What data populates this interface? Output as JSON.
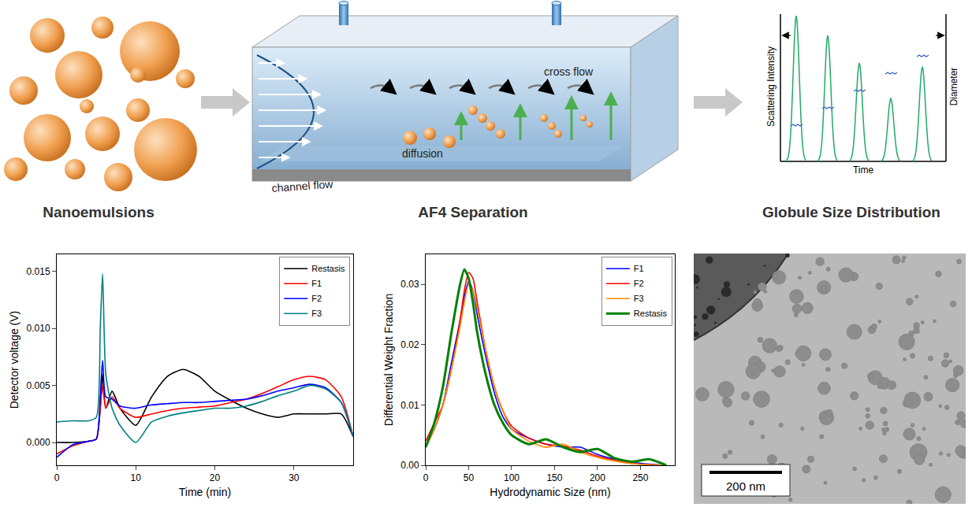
{
  "diagram": {
    "panels": [
      {
        "label": "Nanoemulsions"
      },
      {
        "label": "AF4 Separation",
        "annotations": [
          "channel flow",
          "cross flow",
          "diffusion"
        ]
      },
      {
        "label": "Globule Size Distribution",
        "axis_labels": {
          "left": "Scattering Intensity",
          "right": "Diameter",
          "bottom": "Time"
        }
      }
    ]
  },
  "image": {
    "scale_bar": "200 nm"
  },
  "chart_data": [
    {
      "type": "line",
      "x_label": "Time (min)",
      "y_label": "Detector voltage (V)",
      "x": [
        0,
        2,
        4,
        5,
        5.5,
        5.8,
        6.2,
        7,
        8,
        10,
        12,
        14,
        16,
        18,
        20,
        22,
        24,
        26,
        28,
        30,
        32,
        34,
        36,
        37.5
      ],
      "series": [
        {
          "name": "Restasis",
          "color": "#000000",
          "values": [
            0,
            0,
            0.0001,
            0.0003,
            0.003,
            0.006,
            0.003,
            0.0045,
            0.003,
            0.0015,
            0.004,
            0.0058,
            0.0064,
            0.0058,
            0.0045,
            0.0037,
            0.003,
            0.0025,
            0.0022,
            0.0025,
            0.0025,
            0.0025,
            0.0025,
            0.0005
          ]
        },
        {
          "name": "F1",
          "color": "#ff0000",
          "values": [
            -0.001,
            -0.0003,
            0.0001,
            0.0003,
            0.003,
            0.005,
            0.003,
            0.004,
            0.003,
            0.0022,
            0.0025,
            0.0028,
            0.003,
            0.0031,
            0.0032,
            0.0035,
            0.0038,
            0.0043,
            0.0049,
            0.0055,
            0.0058,
            0.0055,
            0.004,
            0.0005
          ]
        },
        {
          "name": "F2",
          "color": "#0000ff",
          "values": [
            -0.0013,
            -0.0002,
            0.0001,
            0.0003,
            0.004,
            0.0072,
            0.004,
            0.0038,
            0.0032,
            0.003,
            0.0033,
            0.0034,
            0.0035,
            0.0035,
            0.0036,
            0.0037,
            0.0038,
            0.0041,
            0.0045,
            0.0048,
            0.0051,
            0.0048,
            0.0035,
            0.0005
          ]
        },
        {
          "name": "F3",
          "color": "#008080",
          "values": [
            0.0018,
            0.0019,
            0.0019,
            0.0022,
            0.01,
            0.0148,
            0.006,
            0.003,
            0.0015,
            0,
            0.0018,
            0.0023,
            0.0026,
            0.0028,
            0.003,
            0.003,
            0.0032,
            0.0036,
            0.0041,
            0.0045,
            0.005,
            0.0047,
            0.0035,
            0.0005
          ]
        }
      ],
      "xlim": [
        0,
        37.5
      ],
      "xticks": [
        0,
        10,
        20,
        30
      ],
      "ylim": [
        -0.002,
        0.0165
      ],
      "yticks": [
        {
          "value": 0,
          "label": "0.000"
        },
        {
          "value": 0.005,
          "label": "0.005"
        },
        {
          "value": 0.01,
          "label": "0.010"
        },
        {
          "value": 0.015,
          "label": "0.015"
        }
      ],
      "legend": "top-right"
    },
    {
      "type": "line",
      "x_label": "Hydrodynamic Size (nm)",
      "y_label": "Differential Weight Fraction",
      "x": [
        0,
        10,
        20,
        30,
        40,
        45,
        50,
        55,
        60,
        70,
        80,
        90,
        100,
        120,
        140,
        160,
        180,
        200,
        220,
        240,
        260,
        280
      ],
      "series": [
        {
          "name": "F1",
          "color": "#0000ff",
          "values": [
            0.003,
            0.006,
            0.01,
            0.017,
            0.024,
            0.028,
            0.0305,
            0.029,
            0.025,
            0.018,
            0.012,
            0.008,
            0.006,
            0.0045,
            0.0035,
            0.003,
            0.003,
            0.0018,
            0.001,
            0.0005,
            0.0002,
            0
          ]
        },
        {
          "name": "F2",
          "color": "#ff0000",
          "values": [
            0.004,
            0.007,
            0.01,
            0.016,
            0.024,
            0.029,
            0.032,
            0.031,
            0.027,
            0.019,
            0.013,
            0.009,
            0.0065,
            0.0045,
            0.0035,
            0.0032,
            0.0025,
            0.0015,
            0.0008,
            0.0003,
            0.0001,
            0
          ]
        },
        {
          "name": "F3",
          "color": "#ff8c00",
          "values": [
            0.003,
            0.006,
            0.01,
            0.016,
            0.023,
            0.027,
            0.03,
            0.029,
            0.026,
            0.019,
            0.013,
            0.009,
            0.006,
            0.004,
            0.003,
            0.0035,
            0.0022,
            0.0013,
            0.0007,
            0.0003,
            0.0001,
            0
          ]
        },
        {
          "name": "Restasis",
          "color": "#008000",
          "values": [
            0.003,
            0.007,
            0.013,
            0.022,
            0.03,
            0.0325,
            0.031,
            0.027,
            0.022,
            0.015,
            0.01,
            0.007,
            0.005,
            0.0035,
            0.0043,
            0.003,
            0.0022,
            0.0027,
            0.0012,
            0.0006,
            0.001,
            0
          ]
        }
      ],
      "xlim": [
        0,
        290
      ],
      "xticks": [
        0,
        50,
        100,
        150,
        200,
        250
      ],
      "ylim": [
        0,
        0.035
      ],
      "yticks": [
        {
          "value": 0,
          "label": "0.00"
        },
        {
          "value": 0.01,
          "label": "0.01"
        },
        {
          "value": 0.02,
          "label": "0.02"
        },
        {
          "value": 0.03,
          "label": "0.03"
        }
      ],
      "legend": "top-right"
    }
  ]
}
